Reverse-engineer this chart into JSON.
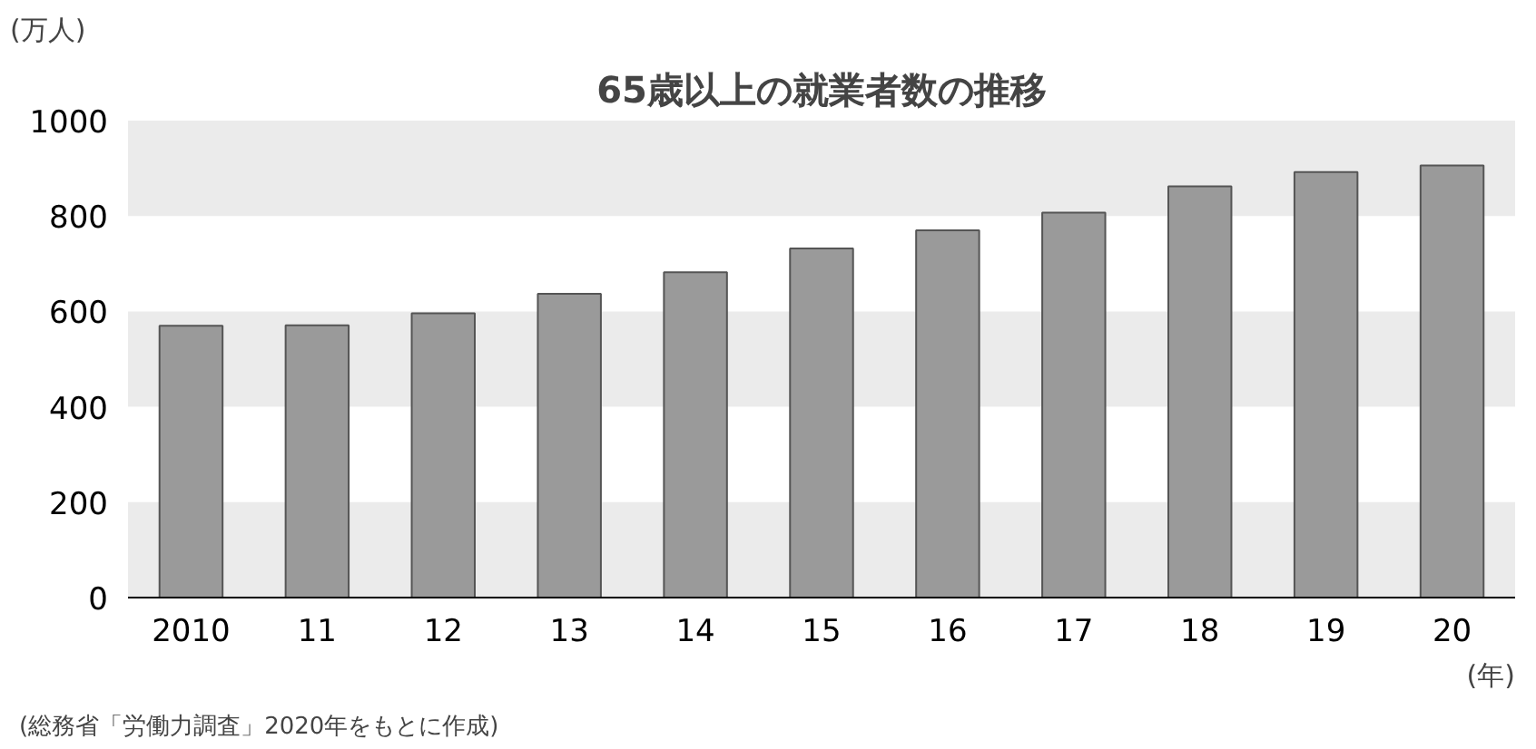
{
  "chart_data": {
    "type": "bar",
    "title": "65歳以上の就業者数の推移",
    "ylabel": "(万人)",
    "xlabel": "(年)",
    "categories": [
      "2010",
      "11",
      "12",
      "13",
      "14",
      "15",
      "16",
      "17",
      "18",
      "19",
      "20"
    ],
    "values": [
      570,
      571,
      596,
      637,
      682,
      732,
      770,
      807,
      862,
      892,
      906
    ],
    "color": "#9a9a9a",
    "ylim": [
      0,
      1000
    ],
    "yticks": [
      0,
      200,
      400,
      600,
      800,
      1000
    ],
    "grid": false,
    "bands": [
      {
        "axis": "y",
        "from": 0,
        "to": 200,
        "color": "#ebebeb"
      },
      {
        "axis": "y",
        "from": 400,
        "to": 600,
        "color": "#ebebeb"
      },
      {
        "axis": "y",
        "from": 800,
        "to": 1000,
        "color": "#ebebeb"
      }
    ],
    "annotations": [
      "(総務省「労働力調査」2020年をもとに作成)"
    ]
  }
}
